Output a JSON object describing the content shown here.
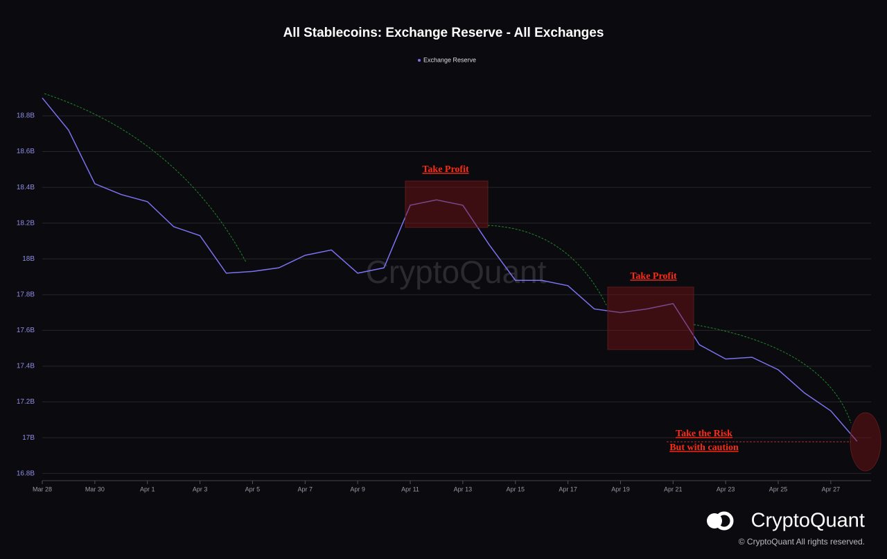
{
  "chart_data": {
    "type": "line",
    "title": "All Stablecoins: Exchange Reserve - All Exchanges",
    "categories": [
      "Mar 28",
      null,
      "Mar 30",
      null,
      "Apr 1",
      null,
      "Apr 3",
      null,
      "Apr 5",
      null,
      "Apr 7",
      null,
      "Apr 9",
      null,
      "Apr 11",
      null,
      "Apr 13",
      null,
      "Apr 15",
      null,
      "Apr 17",
      null,
      "Apr 19",
      null,
      "Apr 21",
      null,
      "Apr 23",
      null,
      "Apr 25",
      null,
      "Apr 27",
      null
    ],
    "series": [
      {
        "name": "Exchange Reserve",
        "color": "#7b73f0",
        "values": [
          18.9,
          18.72,
          18.42,
          18.36,
          18.32,
          18.18,
          18.13,
          17.92,
          17.93,
          17.95,
          18.02,
          18.05,
          17.92,
          17.95,
          18.3,
          18.33,
          18.3,
          18.08,
          17.88,
          17.88,
          17.85,
          17.72,
          17.7,
          17.72,
          17.75,
          17.52,
          17.44,
          17.45,
          17.38,
          17.25,
          17.15,
          16.98
        ]
      }
    ],
    "ylim": [
      16.76,
      18.99
    ],
    "yticks": [
      {
        "value": 16.8,
        "label": "16.8B"
      },
      {
        "value": 17,
        "label": "17B"
      },
      {
        "value": 17.2,
        "label": "17.2B"
      },
      {
        "value": 17.4,
        "label": "17.4B"
      },
      {
        "value": 17.6,
        "label": "17.6B"
      },
      {
        "value": 17.8,
        "label": "17.8B"
      },
      {
        "value": 18,
        "label": "18B"
      },
      {
        "value": 18.2,
        "label": "18.2B"
      },
      {
        "value": 18.4,
        "label": "18.4B"
      },
      {
        "value": 18.6,
        "label": "18.6B"
      },
      {
        "value": 18.8,
        "label": "18.8B"
      }
    ],
    "grid": true,
    "annotations": [
      "Take Profit",
      "Take Profit",
      "Take the Risk",
      "But with caution"
    ],
    "watermark": "CryptoQuant",
    "brand": "CryptoQuant",
    "copyright": "© CryptoQuant All rights reserved."
  }
}
